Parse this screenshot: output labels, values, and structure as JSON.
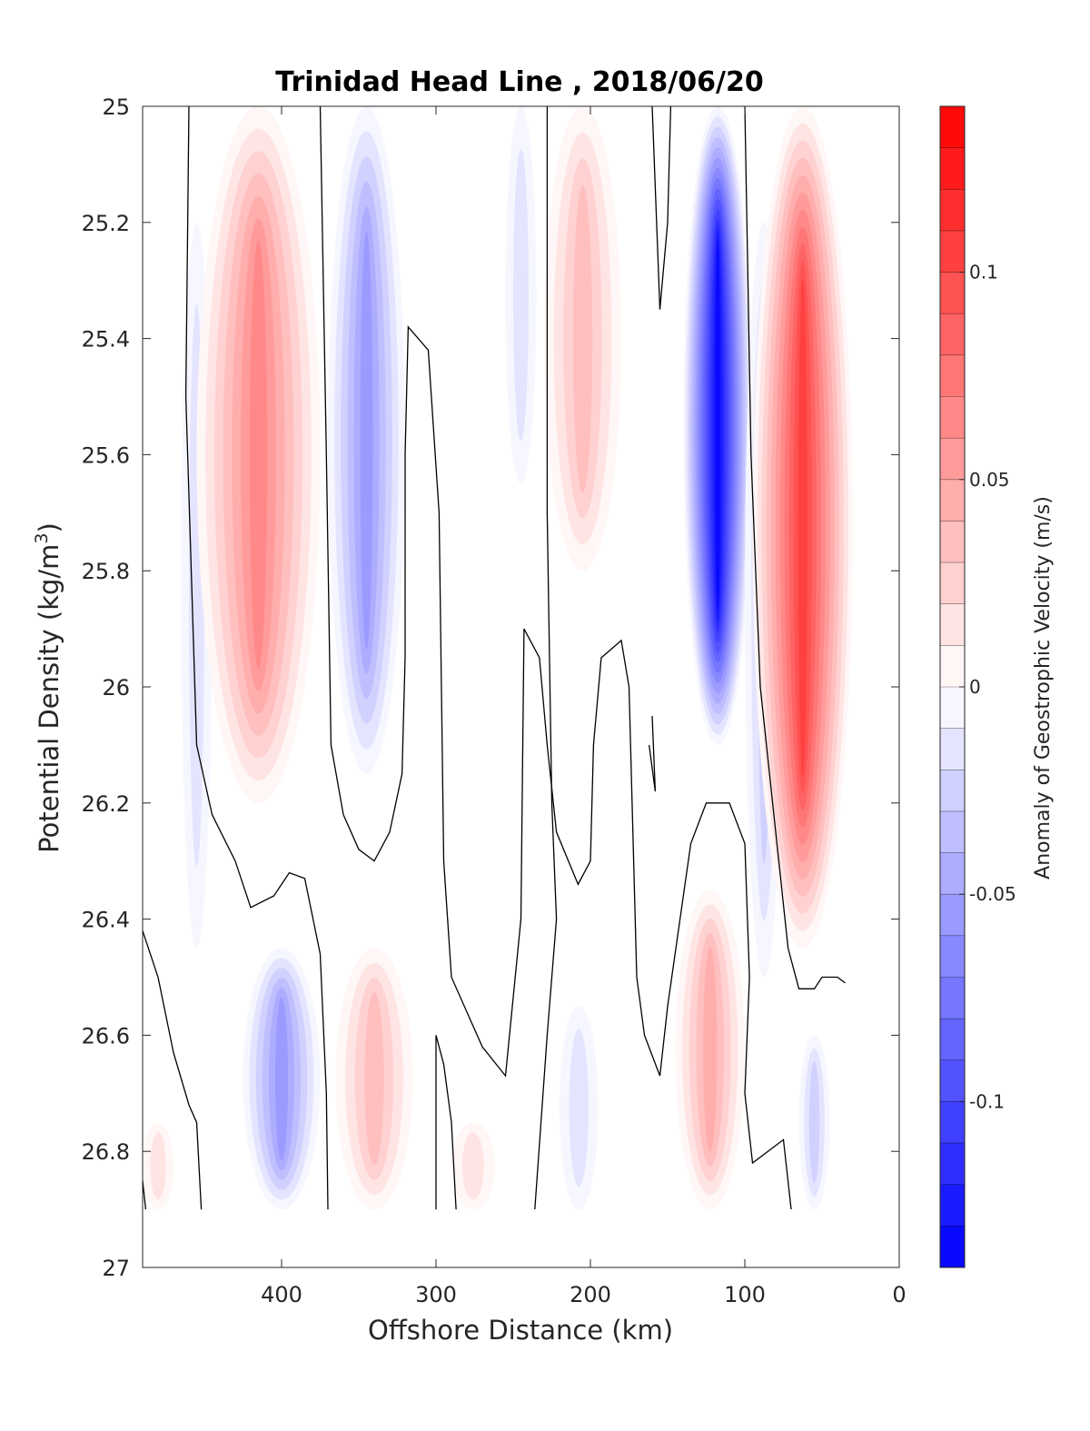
{
  "chart_data": {
    "type": "contourf",
    "title": "Trinidad Head Line , 2018/06/20",
    "xlabel": "Offshore Distance (km)",
    "ylabel_main": "Potential Density (kg/m",
    "ylabel_sup": "3",
    "ylabel_close": ")",
    "colorbar_label": "Anomaly of Geostrophic Velocity (m/s)",
    "xlim": [
      490,
      0
    ],
    "x_reversed": true,
    "ylim": [
      25,
      27
    ],
    "y_reversed": true,
    "x_ticks": [
      400,
      300,
      200,
      100,
      0
    ],
    "x_tick_labels": [
      "400",
      "300",
      "200",
      "100",
      "0"
    ],
    "y_ticks": [
      25,
      25.2,
      25.4,
      25.6,
      25.8,
      26,
      26.2,
      26.4,
      26.6,
      26.8,
      27
    ],
    "y_tick_labels": [
      "25",
      "25.2",
      "25.4",
      "25.6",
      "25.8",
      "26",
      "26.2",
      "26.4",
      "26.6",
      "26.8",
      "27"
    ],
    "colorbar_range": [
      -0.14,
      0.14
    ],
    "colorbar_ticks": [
      0.1,
      0.05,
      0,
      -0.05,
      -0.1
    ],
    "colorbar_tick_labels": [
      "0.1",
      "0.05",
      "0",
      "-0.05",
      "-0.1"
    ],
    "colorbar_levels": 28,
    "colormap": {
      "negative": "#0000ff",
      "zero": "#ffffff",
      "positive": "#ff0000"
    },
    "contour_line_color": "#000000",
    "data_depth_limit": 26.9,
    "features": [
      {
        "sign": "negative",
        "peak_velocity": -0.015,
        "x_range": [
          465,
          445
        ],
        "y_range": [
          25.2,
          26.45
        ]
      },
      {
        "sign": "positive",
        "peak_velocity": 0.07,
        "x_range": [
          455,
          375
        ],
        "y_range": [
          25,
          26.2
        ]
      },
      {
        "sign": "negative",
        "peak_velocity": -0.06,
        "x_range": [
          370,
          320
        ],
        "y_range": [
          25,
          26.15
        ]
      },
      {
        "sign": "negative",
        "peak_velocity": -0.02,
        "x_range": [
          255,
          235
        ],
        "y_range": [
          25,
          25.65
        ]
      },
      {
        "sign": "positive",
        "peak_velocity": 0.04,
        "x_range": [
          230,
          180
        ],
        "y_range": [
          25,
          25.8
        ]
      },
      {
        "sign": "negative",
        "peak_velocity": -0.14,
        "x_range": [
          140,
          95
        ],
        "y_range": [
          25,
          26.1
        ]
      },
      {
        "sign": "negative",
        "peak_velocity": -0.03,
        "x_range": [
          100,
          75
        ],
        "y_range": [
          25.2,
          26.5
        ]
      },
      {
        "sign": "positive",
        "peak_velocity": 0.11,
        "x_range": [
          95,
          30
        ],
        "y_range": [
          25,
          26.45
        ]
      },
      {
        "sign": "negative",
        "peak_velocity": -0.06,
        "x_range": [
          425,
          375
        ],
        "y_range": [
          26.45,
          26.9
        ]
      },
      {
        "sign": "positive",
        "peak_velocity": 0.04,
        "x_range": [
          365,
          315
        ],
        "y_range": [
          26.45,
          26.9
        ]
      },
      {
        "sign": "positive",
        "peak_velocity": 0.015,
        "x_range": [
          290,
          262
        ],
        "y_range": [
          26.75,
          26.9
        ]
      },
      {
        "sign": "negative",
        "peak_velocity": -0.015,
        "x_range": [
          220,
          195
        ],
        "y_range": [
          26.55,
          26.9
        ]
      },
      {
        "sign": "positive",
        "peak_velocity": 0.045,
        "x_range": [
          145,
          100
        ],
        "y_range": [
          26.35,
          26.9
        ]
      },
      {
        "sign": "negative",
        "peak_velocity": -0.025,
        "x_range": [
          65,
          45
        ],
        "y_range": [
          26.6,
          26.9
        ]
      },
      {
        "sign": "positive",
        "peak_velocity": 0.015,
        "x_range": [
          490,
          470
        ],
        "y_range": [
          26.75,
          26.9
        ]
      }
    ],
    "zero_contours": [
      [
        [
          460,
          25
        ],
        [
          462,
          25.5
        ],
        [
          455,
          26.1
        ],
        [
          445,
          26.22
        ],
        [
          430,
          26.3
        ],
        [
          420,
          26.38
        ],
        [
          405,
          26.36
        ],
        [
          395,
          26.32
        ],
        [
          385,
          26.33
        ],
        [
          375,
          26.46
        ],
        [
          371,
          26.7
        ],
        [
          370,
          26.9
        ]
      ],
      [
        [
          375,
          25
        ],
        [
          371,
          25.6
        ],
        [
          368,
          26.1
        ],
        [
          360,
          26.22
        ],
        [
          350,
          26.28
        ],
        [
          340,
          26.3
        ],
        [
          330,
          26.25
        ],
        [
          322,
          26.15
        ],
        [
          320,
          25.95
        ],
        [
          320,
          25.6
        ],
        [
          318,
          25.38
        ],
        [
          305,
          25.42
        ],
        [
          298,
          25.7
        ],
        [
          295,
          26.3
        ],
        [
          290,
          26.5
        ],
        [
          270,
          26.62
        ],
        [
          255,
          26.67
        ],
        [
          245,
          26.4
        ],
        [
          243,
          25.9
        ],
        [
          233,
          25.95
        ],
        [
          228,
          26.1
        ],
        [
          222,
          26.25
        ],
        [
          208,
          26.34
        ],
        [
          200,
          26.3
        ],
        [
          198,
          26.1
        ],
        [
          193,
          25.95
        ],
        [
          180,
          25.92
        ],
        [
          175,
          26.0
        ],
        [
          170,
          26.5
        ],
        [
          165,
          26.6
        ],
        [
          155,
          26.67
        ],
        [
          150,
          26.55
        ],
        [
          135,
          26.27
        ],
        [
          125,
          26.2
        ],
        [
          110,
          26.2
        ],
        [
          100,
          26.27
        ],
        [
          97,
          26.5
        ],
        [
          100,
          26.7
        ],
        [
          95,
          26.82
        ],
        [
          75,
          26.78
        ],
        [
          70,
          26.9
        ]
      ],
      [
        [
          228,
          25
        ],
        [
          228,
          25.7
        ],
        [
          225,
          26.2
        ],
        [
          222,
          26.4
        ],
        [
          228,
          26.6
        ],
        [
          236,
          26.9
        ]
      ],
      [
        [
          160,
          25
        ],
        [
          155,
          25.35
        ],
        [
          150,
          25.2
        ],
        [
          148,
          25.0
        ]
      ],
      [
        [
          162,
          26.1
        ],
        [
          158,
          26.18
        ],
        [
          160,
          26.05
        ]
      ],
      [
        [
          100,
          25
        ],
        [
          96,
          25.6
        ],
        [
          90,
          26.0
        ],
        [
          78,
          26.3
        ],
        [
          72,
          26.45
        ],
        [
          65,
          26.52
        ],
        [
          55,
          26.52
        ],
        [
          50,
          26.5
        ],
        [
          40,
          26.5
        ],
        [
          35,
          26.51
        ]
      ],
      [
        [
          490,
          26.42
        ],
        [
          480,
          26.5
        ],
        [
          470,
          26.63
        ],
        [
          460,
          26.72
        ],
        [
          455,
          26.75
        ],
        [
          452,
          26.9
        ]
      ],
      [
        [
          300,
          26.9
        ],
        [
          300,
          26.6
        ],
        [
          295,
          26.65
        ],
        [
          290,
          26.75
        ],
        [
          287,
          26.9
        ]
      ],
      [
        [
          490,
          26.85
        ],
        [
          488,
          26.9
        ]
      ]
    ]
  }
}
